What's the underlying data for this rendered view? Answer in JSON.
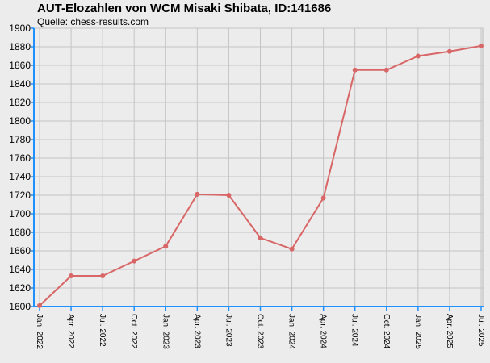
{
  "chart_data": {
    "type": "line",
    "title": "AUT-Elozahlen von WCM Misaki Shibata, ID:141686",
    "subtitle": "Quelle: chess-results.com",
    "xlabel": "",
    "ylabel": "",
    "ylim": [
      1600,
      1900
    ],
    "yticks": [
      1600,
      1620,
      1640,
      1660,
      1680,
      1700,
      1720,
      1740,
      1760,
      1780,
      1800,
      1820,
      1840,
      1860,
      1880,
      1900
    ],
    "categories": [
      "Jan. 2022",
      "Apr. 2022",
      "Jul. 2022",
      "Oct. 2022",
      "Jan. 2023",
      "Apr. 2023",
      "Jul. 2023",
      "Oct. 2023",
      "Jan. 2024",
      "Apr. 2024",
      "Jul. 2024",
      "Oct. 2024",
      "Jan. 2025",
      "Apr. 2025",
      "Jul. 2025"
    ],
    "series": [
      {
        "values": [
          1601,
          1633,
          1633,
          1649,
          1665,
          1721,
          1720,
          1674,
          1662,
          1717,
          1855,
          1855,
          1870,
          1875,
          1881
        ]
      }
    ],
    "grid": true,
    "line_color": "#d96666",
    "axis_color": "#1e90ff"
  }
}
